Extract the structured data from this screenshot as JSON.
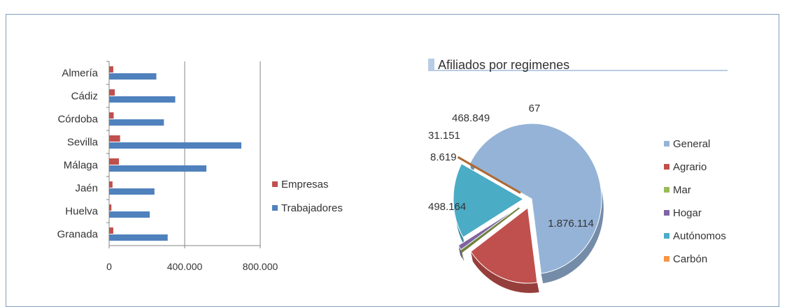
{
  "chart_data": [
    {
      "type": "bar",
      "orientation": "horizontal",
      "title": "",
      "categories": [
        "Almería",
        "Cádiz",
        "Córdoba",
        "Sevilla",
        "Málaga",
        "Jaén",
        "Huelva",
        "Granada"
      ],
      "series": [
        {
          "name": "Empresas",
          "color": "#c0504d",
          "values": [
            22000,
            30000,
            24000,
            58000,
            52000,
            18000,
            12000,
            22000
          ]
        },
        {
          "name": "Trabajadores",
          "color": "#4f81bd",
          "values": [
            250000,
            350000,
            290000,
            700000,
            515000,
            240000,
            215000,
            310000
          ]
        }
      ],
      "xlim": [
        0,
        800000
      ],
      "x_ticks": [
        {
          "value": 0,
          "label": "0"
        },
        {
          "value": 400000,
          "label": "400.000"
        },
        {
          "value": 800000,
          "label": "800.000"
        }
      ],
      "gridlines": true,
      "legend_position": "right"
    },
    {
      "type": "pie",
      "title": "Afiliados por regimenes",
      "exploded": true,
      "slices": [
        {
          "name": "General",
          "value": 1876114,
          "label": "1.876.114",
          "color": "#95b3d7"
        },
        {
          "name": "Agrario",
          "value": 498164,
          "label": "498.164",
          "color": "#c0504d"
        },
        {
          "name": "Mar",
          "value": 8619,
          "label": "8.619",
          "color": "#9bbb59"
        },
        {
          "name": "Hogar",
          "value": 31151,
          "label": "31.151",
          "color": "#8064a2"
        },
        {
          "name": "Autónomos",
          "value": 468849,
          "label": "468.849",
          "color": "#4bacc6"
        },
        {
          "name": "Carbón",
          "value": 67,
          "label": "67",
          "color": "#f79646"
        }
      ],
      "legend_position": "right"
    }
  ]
}
